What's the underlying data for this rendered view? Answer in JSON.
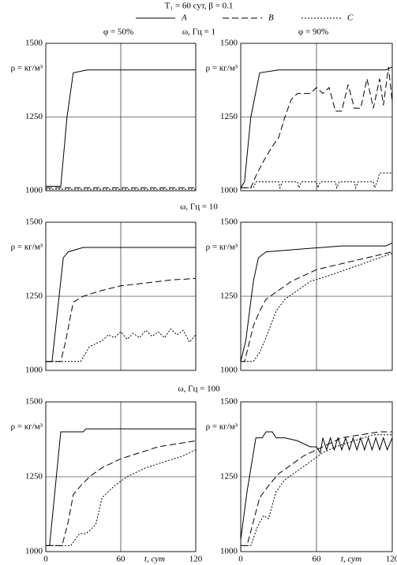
{
  "figure": {
    "title": "T₁ = 60 сут, β = 0.1",
    "columns": [
      "φ = 50%",
      "φ = 90%"
    ],
    "rows": [
      "ω, Гц = 1",
      "ω, Гц = 10",
      "ω, Гц = 100"
    ]
  },
  "chart_data": [
    {
      "type": "line",
      "ylabel": "ρ = кг/м³",
      "xlim": [
        0,
        120
      ],
      "ylim": [
        1000,
        1500
      ],
      "xticks": [
        0,
        60,
        120
      ],
      "yticks": [
        1000,
        1250,
        1500
      ],
      "grid": true,
      "series": [
        {
          "name": "A",
          "color": "#000000",
          "dash": "none",
          "x": [
            0,
            12,
            17,
            22,
            33,
            120
          ],
          "values": [
            1015,
            1015,
            1250,
            1400,
            1410,
            1410
          ]
        },
        {
          "name": "B",
          "color": "#000000",
          "dash": "8 4",
          "x": [
            0,
            120
          ],
          "values": [
            1010,
            1010
          ]
        },
        {
          "name": "C",
          "color": "#000000",
          "dash": "2 2",
          "x": [
            0,
            120
          ],
          "values": [
            1005,
            1005
          ]
        }
      ]
    },
    {
      "type": "line",
      "ylabel": "ρ = кг/м³",
      "xlim": [
        0,
        120
      ],
      "ylim": [
        1000,
        1500
      ],
      "xticks": [
        0,
        60,
        120
      ],
      "yticks": [
        1000,
        1250,
        1500
      ],
      "grid": true,
      "series": [
        {
          "color": "#000000",
          "dash": "none",
          "x": [
            0,
            3,
            8,
            15,
            30,
            115,
            120
          ],
          "values": [
            1010,
            1030,
            1250,
            1400,
            1410,
            1410,
            1420
          ]
        },
        {
          "color": "#000000",
          "dash": "8 4",
          "x": [
            0,
            8,
            12,
            18,
            25,
            30,
            35,
            40,
            45,
            55,
            60,
            65,
            70,
            75,
            80,
            85,
            90,
            95,
            100,
            105,
            110,
            113,
            117,
            120
          ],
          "values": [
            1010,
            1010,
            1050,
            1100,
            1150,
            1180,
            1250,
            1310,
            1330,
            1330,
            1350,
            1330,
            1350,
            1270,
            1270,
            1360,
            1280,
            1280,
            1380,
            1280,
            1380,
            1290,
            1420,
            1300
          ]
        },
        {
          "color": "#000000",
          "dash": "2 2",
          "x": [
            0,
            10,
            12,
            30,
            31,
            33,
            45,
            46,
            48,
            60,
            61,
            63,
            75,
            76,
            78,
            90,
            91,
            93,
            105,
            106,
            108,
            110,
            120
          ],
          "values": [
            1010,
            1010,
            1030,
            1030,
            1010,
            1030,
            1030,
            1010,
            1030,
            1030,
            1010,
            1030,
            1030,
            1010,
            1030,
            1030,
            1010,
            1030,
            1030,
            1010,
            1030,
            1060,
            1060
          ]
        }
      ]
    },
    {
      "type": "line",
      "ylabel": "ρ = кг/м³",
      "xlim": [
        0,
        120
      ],
      "ylim": [
        1000,
        1500
      ],
      "xticks": [
        0,
        60,
        120
      ],
      "yticks": [
        1000,
        1250,
        1500
      ],
      "grid": true,
      "series": [
        {
          "color": "#000000",
          "dash": "none",
          "x": [
            0,
            5,
            14,
            18,
            30,
            120
          ],
          "values": [
            1030,
            1030,
            1380,
            1400,
            1415,
            1415
          ]
        },
        {
          "color": "#000000",
          "dash": "8 4",
          "x": [
            0,
            12,
            16,
            22,
            30,
            45,
            60,
            80,
            100,
            120
          ],
          "values": [
            1030,
            1030,
            1100,
            1230,
            1250,
            1270,
            1285,
            1295,
            1305,
            1310
          ]
        },
        {
          "color": "#000000",
          "dash": "2 2",
          "x": [
            0,
            28,
            35,
            45,
            50,
            55,
            60,
            65,
            70,
            75,
            80,
            85,
            90,
            95,
            100,
            105,
            110,
            115,
            120
          ],
          "values": [
            1030,
            1030,
            1080,
            1100,
            1120,
            1110,
            1130,
            1105,
            1125,
            1110,
            1135,
            1115,
            1130,
            1110,
            1140,
            1120,
            1135,
            1095,
            1120
          ]
        }
      ]
    },
    {
      "type": "line",
      "ylabel": "ρ = кг/м³",
      "xlim": [
        0,
        120
      ],
      "ylim": [
        1000,
        1500
      ],
      "xticks": [
        0,
        60,
        120
      ],
      "yticks": [
        1000,
        1250,
        1500
      ],
      "grid": true,
      "series": [
        {
          "color": "#000000",
          "dash": "none",
          "x": [
            0,
            4,
            10,
            14,
            20,
            50,
            80,
            115,
            120
          ],
          "values": [
            1030,
            1100,
            1300,
            1380,
            1400,
            1410,
            1420,
            1420,
            1430
          ]
        },
        {
          "color": "#000000",
          "dash": "8 4",
          "x": [
            0,
            3,
            6,
            10,
            15,
            20,
            30,
            40,
            50,
            60,
            80,
            100,
            120
          ],
          "values": [
            1030,
            1030,
            1080,
            1150,
            1200,
            1240,
            1270,
            1300,
            1320,
            1340,
            1360,
            1380,
            1400
          ]
        },
        {
          "color": "#000000",
          "dash": "2 2",
          "x": [
            0,
            10,
            15,
            20,
            28,
            35,
            45,
            55,
            70,
            90,
            110,
            120
          ],
          "values": [
            1030,
            1030,
            1060,
            1110,
            1200,
            1240,
            1270,
            1300,
            1320,
            1350,
            1380,
            1395
          ]
        }
      ]
    },
    {
      "type": "line",
      "ylabel": "ρ = кг/м³",
      "xlabel": "t, сут",
      "xtick_labels": true,
      "xlim": [
        0,
        120
      ],
      "ylim": [
        1000,
        1500
      ],
      "xticks": [
        0,
        60,
        120
      ],
      "yticks": [
        1000,
        1250,
        1500
      ],
      "grid": true,
      "series": [
        {
          "color": "#000000",
          "dash": "none",
          "x": [
            0,
            3,
            12,
            30,
            32,
            120
          ],
          "values": [
            1020,
            1020,
            1400,
            1400,
            1410,
            1410
          ]
        },
        {
          "color": "#000000",
          "dash": "8 4",
          "x": [
            0,
            13,
            18,
            22,
            28,
            35,
            45,
            60,
            75,
            90,
            105,
            120
          ],
          "values": [
            1020,
            1020,
            1100,
            1190,
            1220,
            1250,
            1280,
            1310,
            1330,
            1350,
            1360,
            1370
          ]
        },
        {
          "color": "#000000",
          "dash": "2 2",
          "x": [
            0,
            20,
            27,
            32,
            35,
            40,
            45,
            55,
            65,
            80,
            95,
            110,
            120
          ],
          "values": [
            1020,
            1020,
            1060,
            1060,
            1070,
            1090,
            1180,
            1220,
            1250,
            1280,
            1300,
            1320,
            1340
          ]
        }
      ]
    },
    {
      "type": "line",
      "ylabel": "ρ = кг/м³",
      "xlabel": "t, сут",
      "xtick_labels": true,
      "xlim": [
        0,
        120
      ],
      "ylim": [
        1000,
        1500
      ],
      "xticks": [
        0,
        60,
        120
      ],
      "yticks": [
        1000,
        1250,
        1500
      ],
      "grid": true,
      "series": [
        {
          "color": "#000000",
          "dash": "none",
          "x": [
            0,
            5,
            12,
            17,
            20,
            25,
            28,
            35,
            45,
            55,
            60,
            63,
            65,
            68,
            71,
            74,
            77,
            80,
            83,
            86,
            89,
            92,
            95,
            98,
            101,
            104,
            107,
            110,
            113,
            116,
            120
          ],
          "values": [
            1040,
            1200,
            1380,
            1380,
            1400,
            1400,
            1380,
            1380,
            1370,
            1350,
            1350,
            1330,
            1380,
            1340,
            1380,
            1340,
            1380,
            1340,
            1380,
            1340,
            1380,
            1340,
            1380,
            1340,
            1380,
            1340,
            1380,
            1340,
            1380,
            1340,
            1380
          ]
        },
        {
          "color": "#000000",
          "dash": "8 4",
          "x": [
            0,
            5,
            10,
            15,
            22,
            30,
            40,
            50,
            60,
            70,
            80,
            95,
            110,
            120
          ],
          "values": [
            1020,
            1020,
            1100,
            1180,
            1220,
            1260,
            1290,
            1320,
            1340,
            1360,
            1380,
            1390,
            1400,
            1400
          ]
        },
        {
          "color": "#000000",
          "dash": "2 2",
          "x": [
            0,
            8,
            13,
            18,
            22,
            28,
            35,
            45,
            55,
            65,
            75,
            90,
            105,
            120
          ],
          "values": [
            1020,
            1020,
            1080,
            1120,
            1110,
            1200,
            1240,
            1270,
            1300,
            1330,
            1350,
            1370,
            1390,
            1390
          ]
        }
      ]
    }
  ]
}
